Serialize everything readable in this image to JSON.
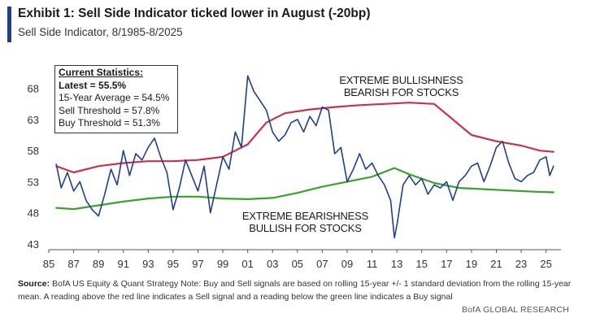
{
  "header": {
    "title": "Exhibit 1: Sell Side Indicator ticked lower in August (-20bp)",
    "subtitle": "Sell Side Indicator, 8/1985-8/2025"
  },
  "stats": {
    "header": "Current Statistics:",
    "latest": "Latest = 55.5%",
    "avg15": "15-Year Average = 54.5%",
    "sell": "Sell Threshold = 57.8%",
    "buy": "Buy Threshold = 51.3%"
  },
  "annotations": {
    "top_line1": "EXTREME BULLISHNESS",
    "top_line2": "BEARISH FOR STOCKS",
    "bottom_line1": "EXTREME BEARISHNESS",
    "bottom_line2": "BULLISH FOR STOCKS"
  },
  "footer": {
    "source_label": "Source:",
    "source_text": "BofA US Equity & Quant Strategy Note: Buy and Sell signals are based on rolling 15-year +/- 1 standard deviation from the rolling 15-year mean. A reading above the red line indicates a Sell signal and a reading below the green line indicates a Buy signal",
    "brand": "BofA GLOBAL RESEARCH"
  },
  "colors": {
    "indicator": "#1f3f8f",
    "sell_line": "#c8324a",
    "buy_line": "#3aa12a",
    "axis": "#555555"
  },
  "chart_data": {
    "type": "line",
    "xlim": [
      1985,
      2026.2
    ],
    "ylim": [
      43,
      72
    ],
    "y_ticks": [
      43,
      48,
      53,
      58,
      63,
      68
    ],
    "x_ticks": [
      1985,
      1987,
      1989,
      1991,
      1993,
      1995,
      1997,
      1999,
      2001,
      2003,
      2005,
      2007,
      2009,
      2011,
      2013,
      2015,
      2017,
      2019,
      2021,
      2023,
      2025
    ],
    "x_tick_labels": [
      "85",
      "87",
      "89",
      "91",
      "93",
      "95",
      "97",
      "99",
      "01",
      "03",
      "05",
      "07",
      "09",
      "11",
      "13",
      "15",
      "17",
      "19",
      "21",
      "23",
      "25"
    ],
    "series": [
      {
        "key": "indicator",
        "x": [
          1985.6,
          1986.0,
          1986.5,
          1987.0,
          1987.5,
          1988.0,
          1988.5,
          1989.0,
          1989.5,
          1990.0,
          1990.5,
          1991.0,
          1991.5,
          1992.0,
          1992.5,
          1993.0,
          1993.5,
          1994.0,
          1994.5,
          1995.0,
          1995.5,
          1996.0,
          1996.5,
          1997.0,
          1997.5,
          1998.0,
          1998.5,
          1999.0,
          1999.5,
          2000.0,
          2000.5,
          2001.0,
          2001.5,
          2002.0,
          2002.5,
          2003.0,
          2003.5,
          2004.0,
          2004.5,
          2005.0,
          2005.5,
          2006.0,
          2006.5,
          2007.0,
          2007.5,
          2008.0,
          2008.5,
          2009.0,
          2009.5,
          2010.0,
          2010.5,
          2011.0,
          2011.5,
          2012.0,
          2012.5,
          2012.8,
          2013.0,
          2013.5,
          2014.0,
          2014.5,
          2015.0,
          2015.5,
          2016.0,
          2016.5,
          2017.0,
          2017.5,
          2018.0,
          2018.5,
          2019.0,
          2019.5,
          2020.0,
          2020.5,
          2021.0,
          2021.5,
          2022.0,
          2022.5,
          2023.0,
          2023.5,
          2024.0,
          2024.5,
          2025.0,
          2025.3,
          2025.6
        ],
        "y": [
          55.8,
          52.0,
          54.5,
          51.5,
          53.0,
          50.0,
          48.5,
          47.5,
          51.0,
          55.0,
          52.5,
          58.0,
          54.0,
          57.5,
          56.5,
          58.5,
          60.0,
          57.0,
          54.5,
          48.5,
          52.0,
          56.5,
          54.0,
          51.5,
          55.5,
          48.0,
          52.5,
          57.0,
          55.0,
          61.0,
          58.5,
          70.0,
          67.5,
          66.0,
          64.5,
          61.0,
          59.5,
          60.5,
          62.5,
          63.0,
          61.0,
          63.5,
          62.0,
          65.0,
          64.5,
          57.5,
          58.5,
          53.0,
          55.0,
          57.5,
          55.0,
          56.0,
          54.0,
          52.5,
          50.0,
          44.0,
          46.0,
          52.5,
          54.0,
          52.5,
          53.5,
          51.0,
          52.5,
          52.0,
          53.0,
          50.0,
          53.0,
          54.0,
          55.5,
          56.0,
          53.0,
          55.5,
          58.5,
          59.5,
          56.0,
          53.5,
          53.0,
          54.0,
          54.5,
          56.5,
          57.0,
          54.0,
          55.5
        ]
      },
      {
        "key": "sell",
        "x": [
          1985.6,
          1987.0,
          1989.0,
          1991.0,
          1993.0,
          1995.0,
          1997.0,
          1999.0,
          2001.0,
          2002.5,
          2004.0,
          2006.0,
          2008.0,
          2010.0,
          2012.0,
          2014.0,
          2016.0,
          2017.5,
          2019.0,
          2021.0,
          2023.0,
          2024.5,
          2025.6
        ],
        "y": [
          55.5,
          54.5,
          55.5,
          56.0,
          56.3,
          56.3,
          56.5,
          57.0,
          59.0,
          62.5,
          64.0,
          64.6,
          65.0,
          65.3,
          65.5,
          65.7,
          65.5,
          63.0,
          60.5,
          59.5,
          58.8,
          58.0,
          57.8
        ]
      },
      {
        "key": "buy",
        "x": [
          1985.6,
          1987.0,
          1989.0,
          1991.0,
          1993.0,
          1995.0,
          1997.0,
          1999.0,
          2001.0,
          2003.0,
          2005.0,
          2007.0,
          2009.0,
          2011.0,
          2012.8,
          2014.0,
          2016.0,
          2018.0,
          2020.0,
          2022.0,
          2024.0,
          2025.6
        ],
        "y": [
          48.8,
          48.6,
          49.2,
          49.8,
          50.3,
          50.6,
          50.6,
          50.3,
          50.2,
          50.4,
          51.2,
          52.2,
          53.0,
          53.8,
          55.2,
          54.2,
          52.8,
          52.0,
          51.8,
          51.6,
          51.4,
          51.3
        ]
      }
    ]
  }
}
